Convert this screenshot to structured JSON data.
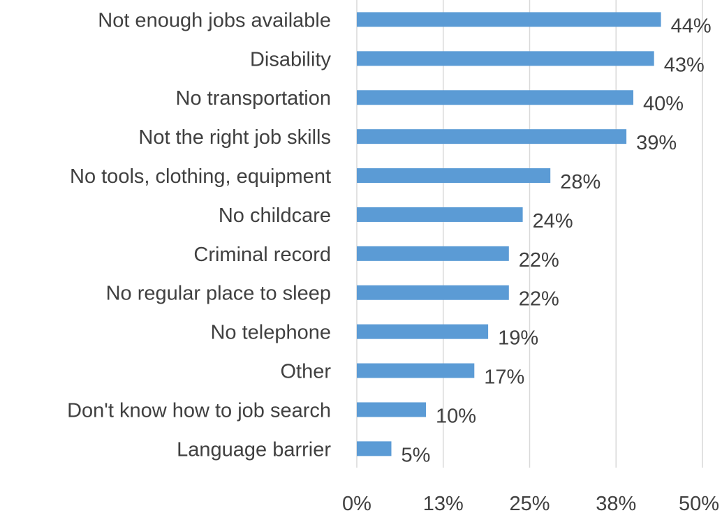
{
  "chart_data": {
    "type": "bar",
    "orientation": "horizontal",
    "title": "",
    "xlabel": "",
    "ylabel": "",
    "categories": [
      "Not enough jobs available",
      "Disability",
      "No transportation",
      "Not the right job skills",
      "No tools, clothing, equipment",
      "No childcare",
      "Criminal record",
      "No regular place to sleep",
      "No telephone",
      "Other",
      "Don't know how to job search",
      "Language barrier"
    ],
    "values": [
      44,
      43,
      40,
      39,
      28,
      24,
      22,
      22,
      19,
      17,
      10,
      5
    ],
    "value_labels": [
      "44%",
      "43%",
      "40%",
      "39%",
      "28%",
      "24%",
      "22%",
      "22%",
      "19%",
      "17%",
      "10%",
      "5%"
    ],
    "xlim": [
      0,
      50
    ],
    "x_ticks": [
      0,
      12.5,
      25,
      37.5,
      50
    ],
    "x_tick_labels": [
      "0%",
      "13%",
      "25%",
      "38%",
      "50%"
    ],
    "grid": "vertical",
    "legend": "none",
    "bar_color": "#5b9bd5",
    "grid_color": "#d9d9d9",
    "text_color": "#404040"
  }
}
